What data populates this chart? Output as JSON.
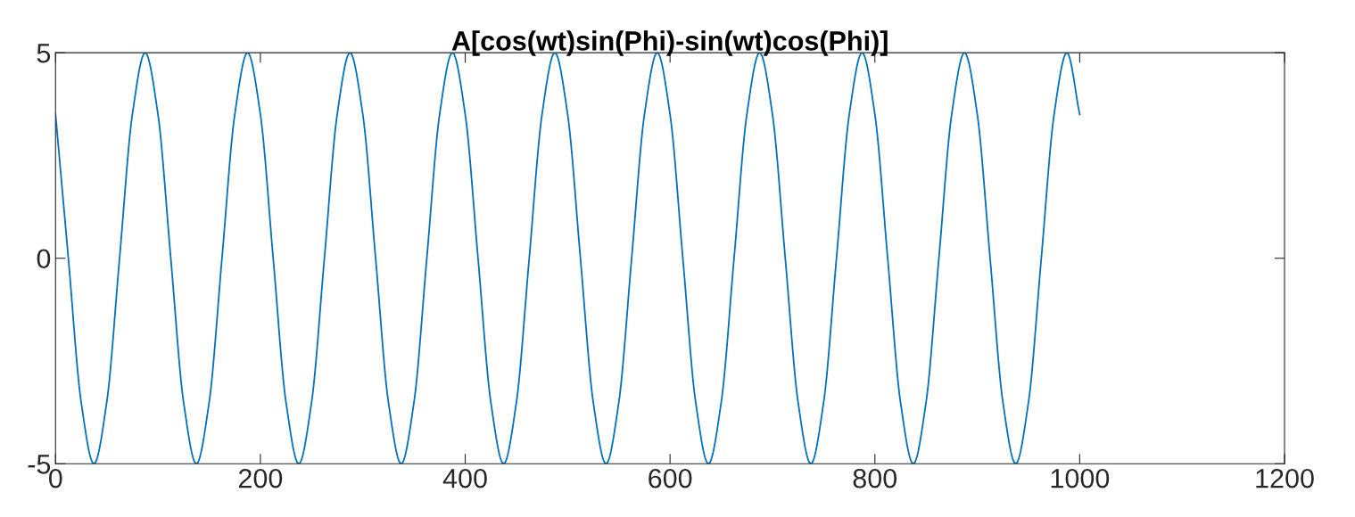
{
  "chart_data": {
    "type": "line",
    "title": "A[cos(wt)sin(Phi)-sin(wt)cos(Phi)]",
    "x": [
      0,
      12.5,
      25,
      37.5,
      50,
      62.5,
      75,
      87.5,
      100,
      112.5,
      125,
      137.5,
      150,
      162.5,
      175,
      187.5,
      200,
      212.5,
      225,
      237.5,
      250,
      262.5,
      275,
      287.5,
      300,
      312.5,
      325,
      337.5,
      350,
      362.5,
      375,
      387.5,
      400,
      412.5,
      425,
      437.5,
      450,
      462.5,
      475,
      487.5,
      500,
      512.5,
      525,
      537.5,
      550,
      562.5,
      575,
      587.5,
      600,
      612.5,
      625,
      637.5,
      650,
      662.5,
      675,
      687.5,
      700,
      712.5,
      725,
      737.5,
      750,
      762.5,
      775,
      787.5,
      800,
      812.5,
      825,
      837.5,
      850,
      862.5,
      875,
      887.5,
      900,
      912.5,
      925,
      937.5,
      950,
      962.5,
      975,
      987.5,
      1000
    ],
    "series": [
      {
        "color": "#0072bd",
        "values": [
          3.5,
          0,
          -3.5,
          -5,
          -3.5,
          0,
          3.5,
          5,
          3.5,
          0,
          -3.5,
          -5,
          -3.5,
          0,
          3.5,
          5,
          3.5,
          0,
          -3.5,
          -5,
          -3.5,
          0,
          3.5,
          5,
          3.5,
          0,
          -3.5,
          -5,
          -3.5,
          0,
          3.5,
          5,
          3.5,
          0,
          -3.5,
          -5,
          -3.5,
          0,
          3.5,
          5,
          3.5,
          0,
          -3.5,
          -5,
          -3.5,
          0,
          3.5,
          5,
          3.5,
          0,
          -3.5,
          -5,
          -3.5,
          0,
          3.5,
          5,
          3.5,
          0,
          -3.5,
          -5,
          -3.5,
          0,
          3.5,
          5,
          3.5,
          0,
          -3.5,
          -5,
          -3.5,
          0,
          3.5,
          5,
          3.5,
          0,
          -3.5,
          -5,
          -3.5,
          0,
          3.5,
          5,
          3.5
        ]
      }
    ],
    "xlim": [
      0,
      1200
    ],
    "xticks": [
      0,
      200,
      400,
      600,
      800,
      1000,
      1200
    ],
    "ylim": [
      -5,
      5
    ],
    "yticks": [
      -5,
      0,
      5
    ],
    "grid": false,
    "legend": false
  }
}
